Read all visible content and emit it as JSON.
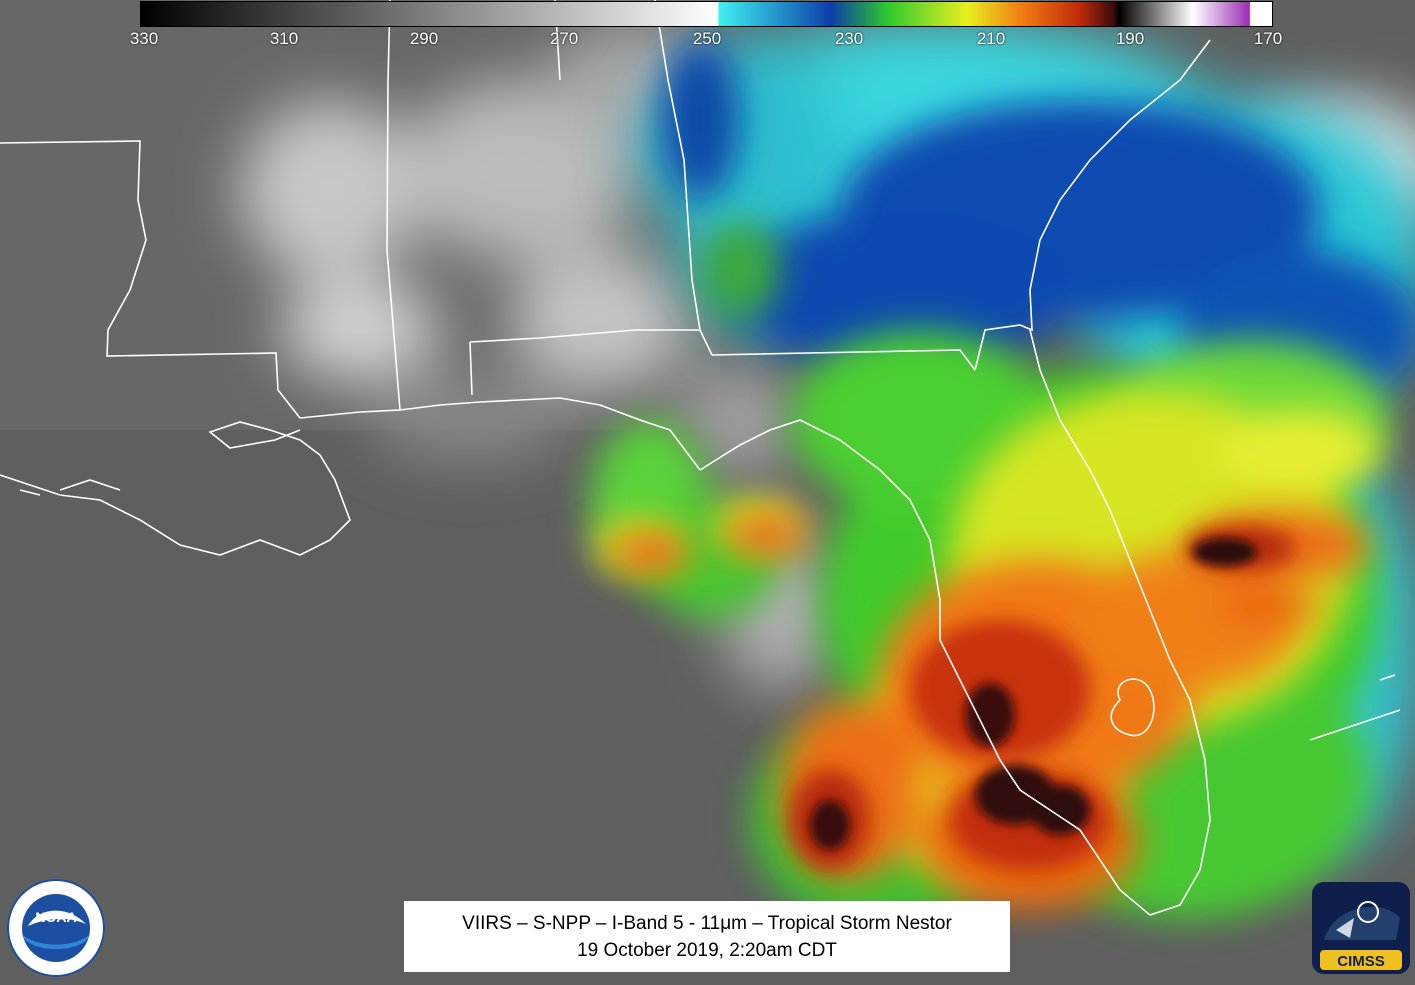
{
  "colorbar": {
    "tick_labels": [
      "330",
      "310",
      "290",
      "270",
      "250",
      "230",
      "210",
      "190",
      "170"
    ],
    "gradient": [
      {
        "c": "#000000",
        "p": 0
      },
      {
        "c": "#ffffff",
        "p": 51
      },
      {
        "c": "#3ff0f0",
        "p": 51.1
      },
      {
        "c": "#0d3fa8",
        "p": 61
      },
      {
        "c": "#2ec82e",
        "p": 66
      },
      {
        "c": "#e6f020",
        "p": 73
      },
      {
        "c": "#f07a10",
        "p": 78
      },
      {
        "c": "#c02a08",
        "p": 83
      },
      {
        "c": "#3a0c0c",
        "p": 86
      },
      {
        "c": "#000000",
        "p": 86.5
      },
      {
        "c": "#ffffff",
        "p": 93
      },
      {
        "c": "#9a2eb2",
        "p": 98
      },
      {
        "c": "#ffffff",
        "p": 98.1
      }
    ]
  },
  "caption": {
    "line1": "VIIRS – S-NPP – I-Band 5 - 11μm – Tropical Storm Nestor",
    "line2": "19 October 2019, 2:20am CDT"
  },
  "logos": {
    "noaa_text": "NOAA",
    "cimss_text": "CIMSS"
  },
  "colors": {
    "ocean_gray": "#5e5e5e",
    "land_gray": "#6a6a6a",
    "border_line": "#ffffff",
    "noaa_blue": "#1c4fa0",
    "cimss_gold": "#f0c020"
  }
}
